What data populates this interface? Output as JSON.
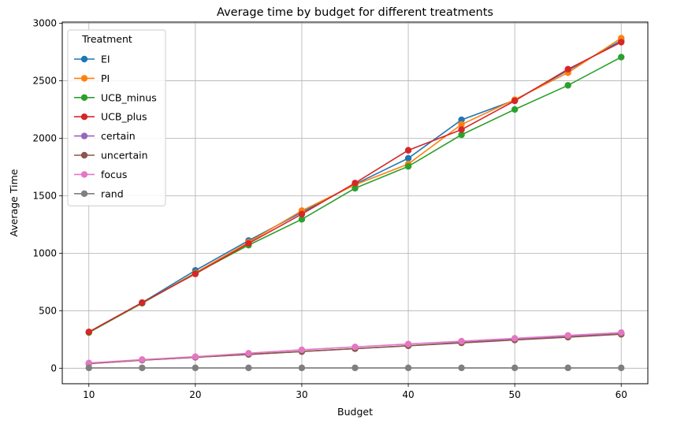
{
  "chart_data": {
    "type": "line",
    "title": "Average time by budget for different treatments",
    "xlabel": "Budget",
    "ylabel": "Average Time",
    "xlim": [
      7.5,
      62.5
    ],
    "ylim": [
      -135,
      3010
    ],
    "xticks": [
      10,
      20,
      30,
      40,
      50,
      60
    ],
    "yticks": [
      0,
      500,
      1000,
      1500,
      2000,
      2500,
      3000
    ],
    "grid": true,
    "legend": {
      "title": "Treatment",
      "position": "top-left"
    },
    "x": [
      10,
      15,
      20,
      25,
      30,
      35,
      40,
      45,
      50,
      55,
      60
    ],
    "series": [
      {
        "name": "EI",
        "color": "#1f77b4",
        "values": [
          315,
          570,
          850,
          1110,
          1355,
          1600,
          1825,
          2160,
          2330,
          2590,
          2850
        ]
      },
      {
        "name": "PI",
        "color": "#ff7f0e",
        "values": [
          315,
          565,
          830,
          1095,
          1370,
          1595,
          1775,
          2120,
          2335,
          2570,
          2870
        ]
      },
      {
        "name": "UCB_minus",
        "color": "#2ca02c",
        "values": [
          310,
          565,
          825,
          1070,
          1295,
          1565,
          1755,
          2030,
          2250,
          2460,
          2705
        ]
      },
      {
        "name": "UCB_plus",
        "color": "#d62728",
        "values": [
          315,
          570,
          820,
          1085,
          1340,
          1610,
          1895,
          2075,
          2325,
          2600,
          2835
        ]
      },
      {
        "name": "certain",
        "color": "#9467bd",
        "values": [
          40,
          70,
          95,
          120,
          145,
          170,
          195,
          225,
          250,
          275,
          300
        ]
      },
      {
        "name": "uncertain",
        "color": "#8c564b",
        "values": [
          40,
          70,
          95,
          120,
          145,
          170,
          195,
          220,
          245,
          270,
          295
        ]
      },
      {
        "name": "focus",
        "color": "#e377c2",
        "values": [
          45,
          75,
          100,
          130,
          160,
          185,
          210,
          235,
          260,
          285,
          310
        ]
      },
      {
        "name": "rand",
        "color": "#7f7f7f",
        "values": [
          3,
          3,
          3,
          3,
          3,
          3,
          3,
          3,
          3,
          3,
          3
        ]
      }
    ]
  }
}
